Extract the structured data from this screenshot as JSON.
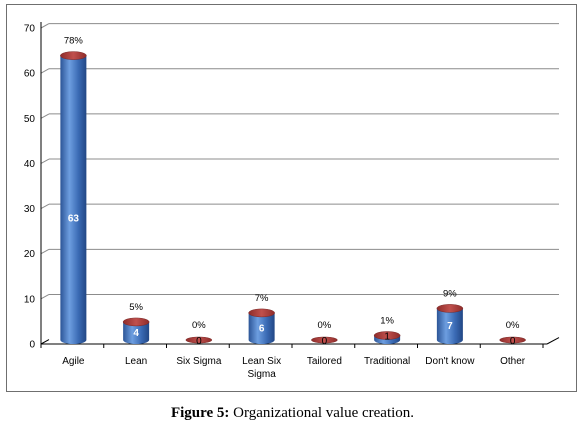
{
  "chart_data": {
    "type": "bar",
    "title": "",
    "xlabel": "",
    "ylabel": "",
    "ylim": [
      0,
      70
    ],
    "yticks": [
      0,
      10,
      20,
      30,
      40,
      50,
      60,
      70
    ],
    "grid": true,
    "categories": [
      "Agile",
      "Lean",
      "Six Sigma",
      "Lean Six Sigma",
      "Tailored",
      "Traditional",
      "Don't know",
      "Other"
    ],
    "values": [
      63,
      4,
      0,
      6,
      0,
      1,
      7,
      0
    ],
    "percent_labels": [
      "78%",
      "5%",
      "0%",
      "7%",
      "0%",
      "1%",
      "9%",
      "0%"
    ],
    "value_labels": [
      "63",
      "4",
      "0",
      "6",
      "0",
      "1",
      "7",
      "0"
    ],
    "colors": {
      "bar_body": "#4f81bd",
      "bar_top": "#c0504d",
      "gridline": "#8c8c8c",
      "axis": "#000000"
    }
  },
  "caption": {
    "label": "Figure 5:",
    "text": " Organizational value creation."
  }
}
